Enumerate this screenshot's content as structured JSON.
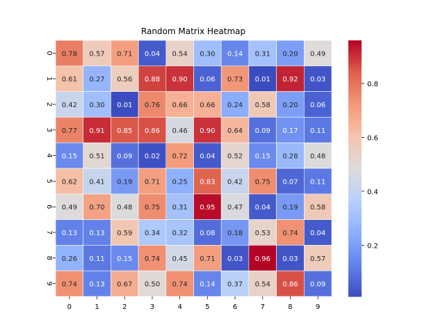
{
  "chart_data": {
    "type": "heatmap",
    "title": "Random Matrix Heatmap",
    "x_categories": [
      "0",
      "1",
      "2",
      "3",
      "4",
      "5",
      "6",
      "7",
      "8",
      "9"
    ],
    "y_categories": [
      "0",
      "1",
      "2",
      "3",
      "4",
      "5",
      "6",
      "7",
      "8",
      "9"
    ],
    "values": [
      [
        0.78,
        0.57,
        0.71,
        0.04,
        0.54,
        0.3,
        0.14,
        0.31,
        0.2,
        0.49
      ],
      [
        0.61,
        0.27,
        0.56,
        0.88,
        0.9,
        0.06,
        0.73,
        0.01,
        0.92,
        0.03
      ],
      [
        0.42,
        0.3,
        0.01,
        0.76,
        0.66,
        0.66,
        0.24,
        0.58,
        0.2,
        0.06
      ],
      [
        0.77,
        0.91,
        0.85,
        0.86,
        0.46,
        0.9,
        0.64,
        0.09,
        0.17,
        0.11
      ],
      [
        0.15,
        0.51,
        0.09,
        0.02,
        0.72,
        0.04,
        0.52,
        0.15,
        0.28,
        0.48
      ],
      [
        0.62,
        0.41,
        0.19,
        0.71,
        0.25,
        0.83,
        0.42,
        0.75,
        0.07,
        0.11
      ],
      [
        0.49,
        0.7,
        0.48,
        0.75,
        0.31,
        0.95,
        0.47,
        0.04,
        0.19,
        0.58
      ],
      [
        0.13,
        0.13,
        0.59,
        0.34,
        0.32,
        0.08,
        0.18,
        0.53,
        0.74,
        0.04
      ],
      [
        0.26,
        0.11,
        0.15,
        0.74,
        0.45,
        0.71,
        0.03,
        0.96,
        0.03,
        0.57
      ],
      [
        0.74,
        0.13,
        0.67,
        0.5,
        0.74,
        0.14,
        0.37,
        0.54,
        0.86,
        0.09
      ]
    ],
    "colormap": "coolwarm",
    "vmin": 0.01,
    "vmax": 0.96,
    "colorbar_ticks": [
      "0.2",
      "0.4",
      "0.6",
      "0.8"
    ],
    "colorbar_tick_values": [
      0.2,
      0.4,
      0.6,
      0.8
    ],
    "annotations": true,
    "grid_lines_color": "#ffffff"
  }
}
